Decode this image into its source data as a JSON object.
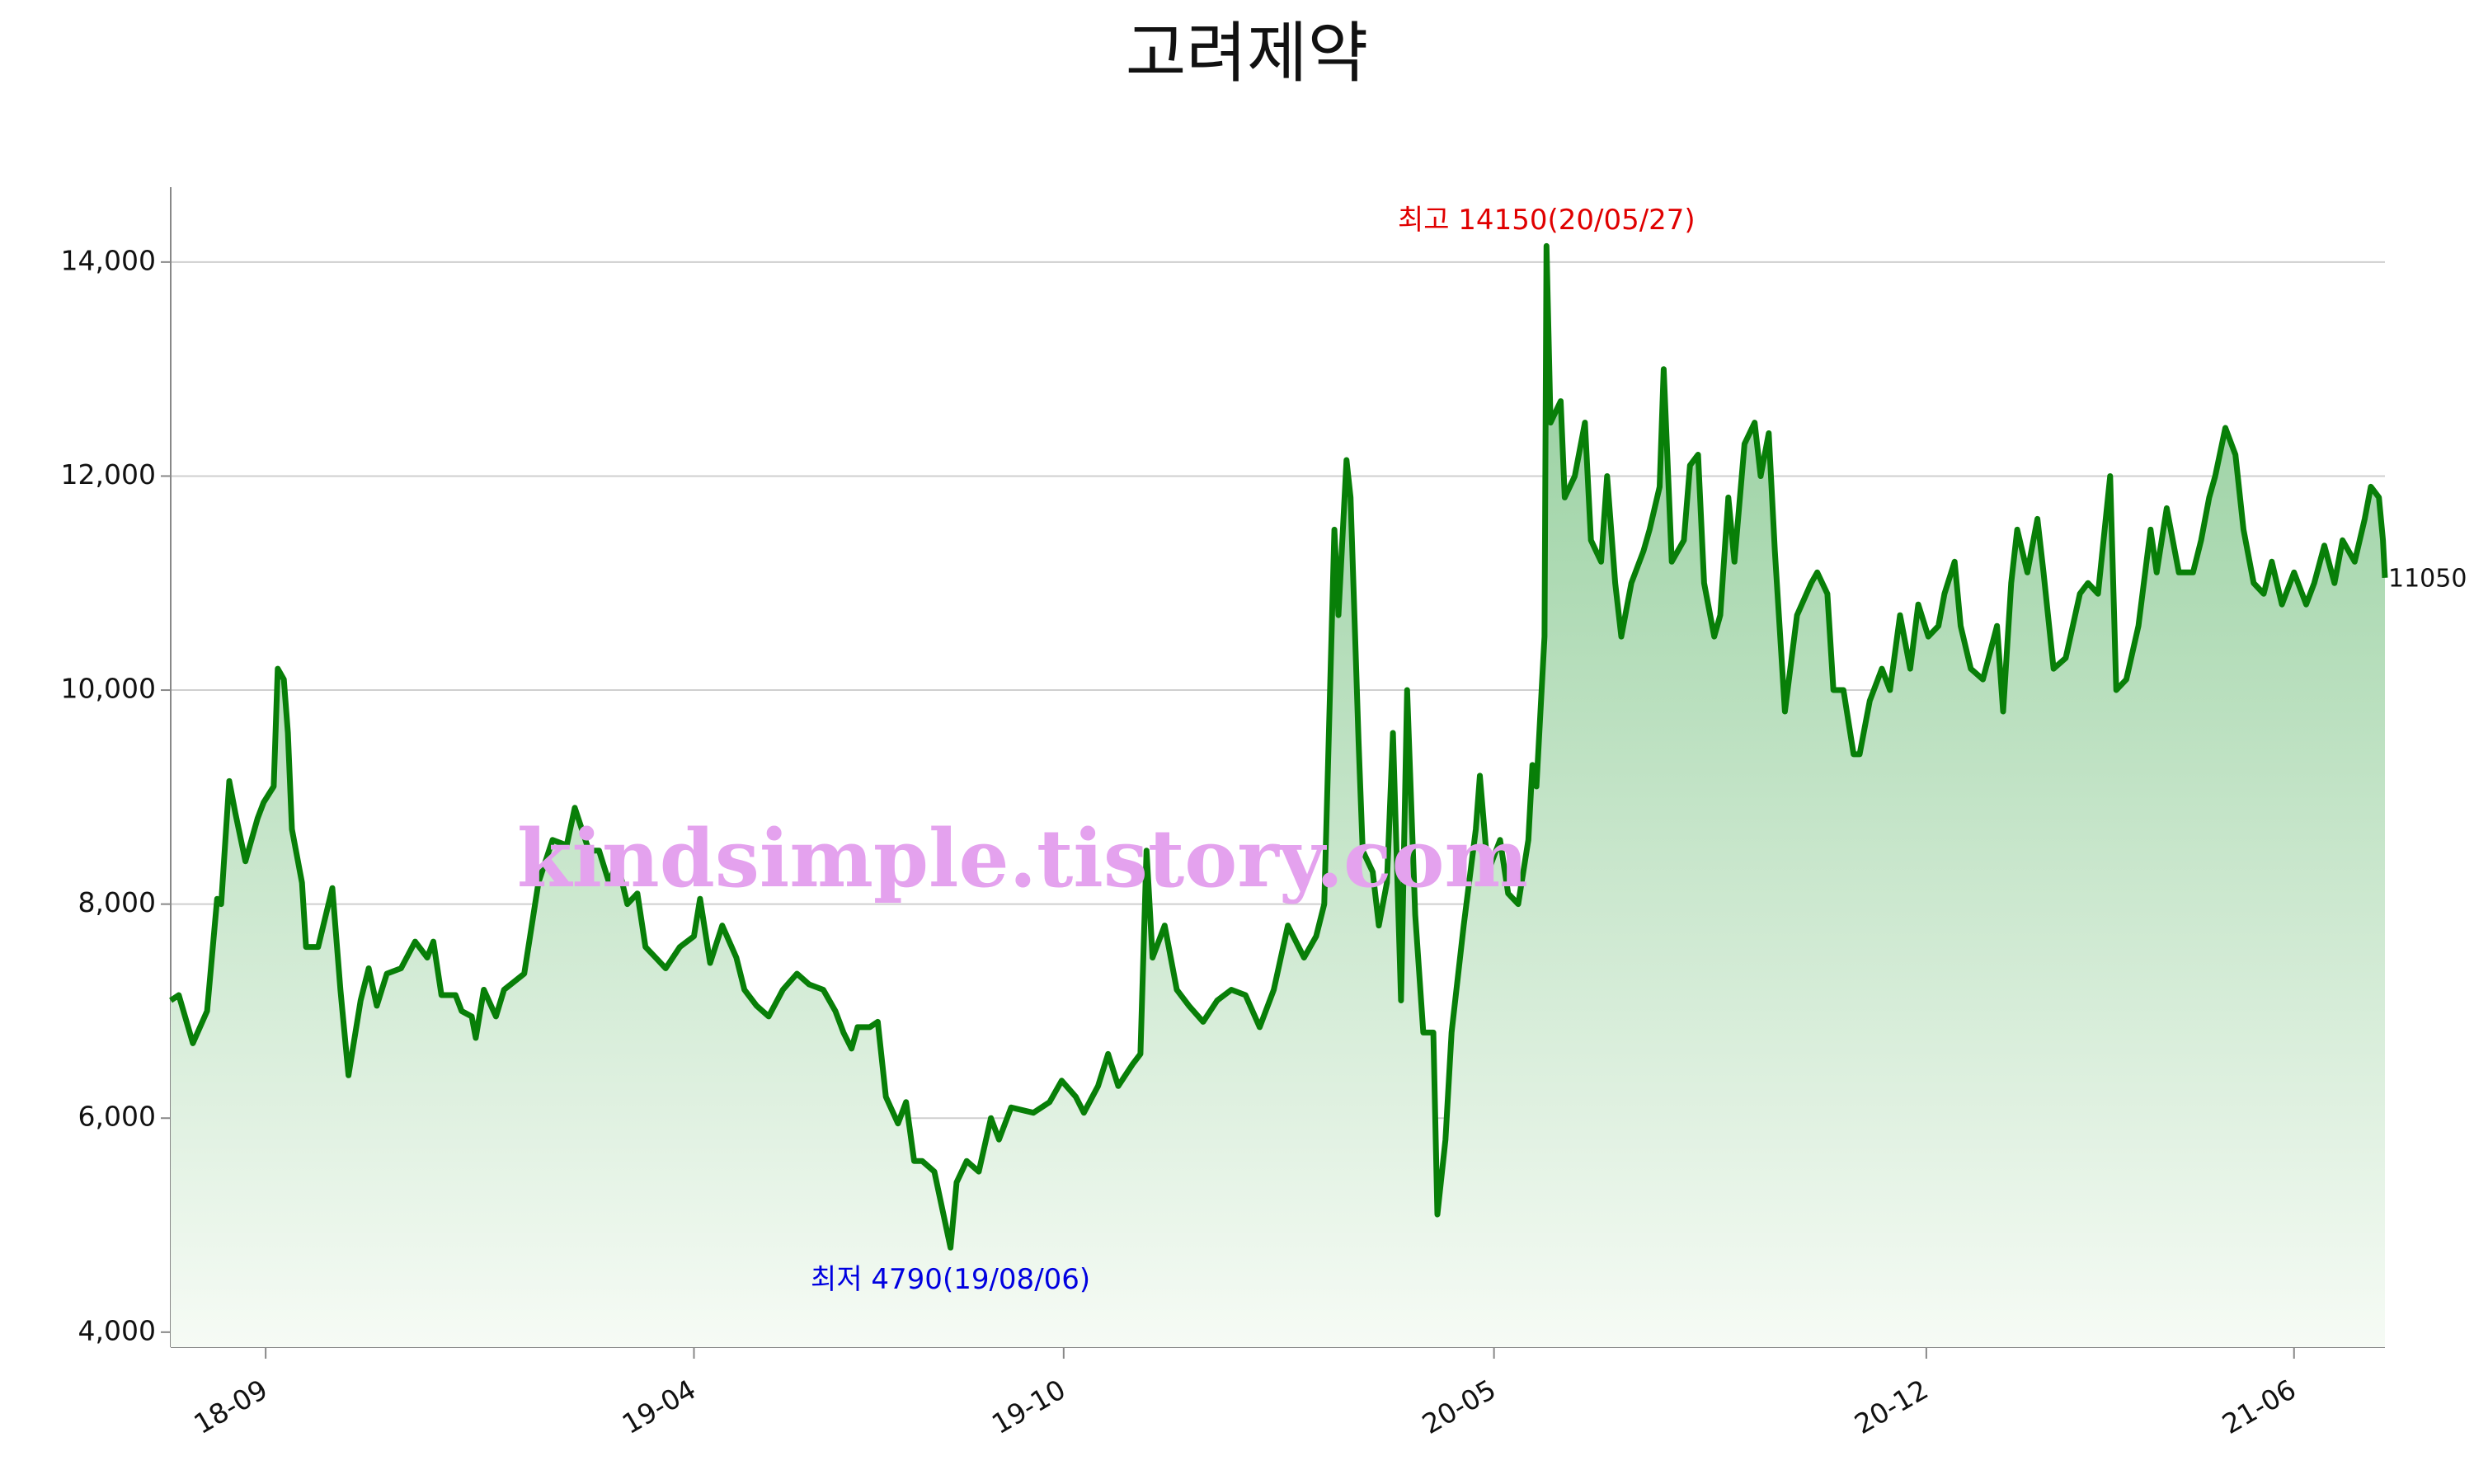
{
  "chart_data": {
    "type": "area",
    "title": "고려제약",
    "xlim": [
      "2018-07-16",
      "2021-07-16"
    ],
    "ylim": [
      3860,
      14700
    ],
    "yticks": [
      {
        "value": 4000,
        "label": "4,000"
      },
      {
        "value": 6000,
        "label": "6,000"
      },
      {
        "value": 8000,
        "label": "8,000"
      },
      {
        "value": 10000,
        "label": "10,000"
      },
      {
        "value": 12000,
        "label": "12,000"
      },
      {
        "value": 14000,
        "label": "14,000"
      }
    ],
    "xticks": [
      {
        "value": "2018-09",
        "label": "18-09"
      },
      {
        "value": "2019-04",
        "label": "19-04"
      },
      {
        "value": "2019-10",
        "label": "19-10"
      },
      {
        "value": "2020-05",
        "label": "20-05"
      },
      {
        "value": "2020-12",
        "label": "20-12"
      },
      {
        "value": "2021-06",
        "label": "21-06"
      }
    ],
    "grid": true,
    "max_label": {
      "text": "최고 14150(20/05/27)",
      "color": "#e00000"
    },
    "min_label": {
      "text": "최저 4790(19/08/06)",
      "color": "#0000e0"
    },
    "watermark": {
      "text": "kindsimple.tistory.com",
      "color": "#e4a2ee"
    },
    "x": [
      "2018-07-16",
      "2018-07-20",
      "2018-07-27",
      "2018-08-03",
      "2018-08-08",
      "2018-08-10",
      "2018-08-14",
      "2018-08-17",
      "2018-08-22",
      "2018-08-28",
      "2018-08-31",
      "2018-09-05",
      "2018-09-07",
      "2018-09-10",
      "2018-09-12",
      "2018-09-14",
      "2018-09-19",
      "2018-09-21",
      "2018-09-27",
      "2018-10-04",
      "2018-10-08",
      "2018-10-12",
      "2018-10-18",
      "2018-10-22",
      "2018-10-26",
      "2018-10-31",
      "2018-11-07",
      "2018-11-14",
      "2018-11-20",
      "2018-11-23",
      "2018-11-27",
      "2018-12-04",
      "2018-12-07",
      "2018-12-12",
      "2018-12-14",
      "2018-12-18",
      "2018-12-24",
      "2018-12-28",
      "2019-01-07",
      "2019-01-14",
      "2019-01-21",
      "2019-01-28",
      "2019-02-01",
      "2019-02-08",
      "2019-02-13",
      "2019-02-18",
      "2019-02-22",
      "2019-02-27",
      "2019-03-04",
      "2019-03-08",
      "2019-03-13",
      "2019-03-18",
      "2019-03-25",
      "2019-04-01",
      "2019-04-04",
      "2019-04-09",
      "2019-04-15",
      "2019-04-22",
      "2019-04-26",
      "2019-05-02",
      "2019-05-08",
      "2019-05-15",
      "2019-05-22",
      "2019-05-28",
      "2019-06-04",
      "2019-06-10",
      "2019-06-14",
      "2019-06-18",
      "2019-06-21",
      "2019-06-27",
      "2019-07-01",
      "2019-07-05",
      "2019-07-11",
      "2019-07-15",
      "2019-07-19",
      "2019-07-23",
      "2019-07-29",
      "2019-08-06",
      "2019-08-09",
      "2019-08-14",
      "2019-08-20",
      "2019-08-26",
      "2019-08-30",
      "2019-09-05",
      "2019-09-16",
      "2019-09-24",
      "2019-09-30",
      "2019-10-07",
      "2019-10-11",
      "2019-10-18",
      "2019-10-23",
      "2019-10-28",
      "2019-11-04",
      "2019-11-08",
      "2019-11-11",
      "2019-11-14",
      "2019-11-20",
      "2019-11-26",
      "2019-12-02",
      "2019-12-09",
      "2019-12-16",
      "2019-12-23",
      "2019-12-30",
      "2020-01-06",
      "2020-01-13",
      "2020-01-20",
      "2020-01-28",
      "2020-02-03",
      "2020-02-07",
      "2020-02-12",
      "2020-02-14",
      "2020-02-18",
      "2020-02-20",
      "2020-02-24",
      "2020-02-26",
      "2020-03-02",
      "2020-03-05",
      "2020-03-09",
      "2020-03-12",
      "2020-03-16",
      "2020-03-19",
      "2020-03-23",
      "2020-03-27",
      "2020-04-01",
      "2020-04-03",
      "2020-04-07",
      "2020-04-10",
      "2020-04-16",
      "2020-04-22",
      "2020-04-24",
      "2020-04-28",
      "2020-05-04",
      "2020-05-08",
      "2020-05-13",
      "2020-05-18",
      "2020-05-20",
      "2020-05-22",
      "2020-05-26",
      "2020-05-27",
      "2020-05-29",
      "2020-06-03",
      "2020-06-05",
      "2020-06-10",
      "2020-06-15",
      "2020-06-18",
      "2020-06-23",
      "2020-06-26",
      "2020-06-30",
      "2020-07-03",
      "2020-07-08",
      "2020-07-14",
      "2020-07-17",
      "2020-07-22",
      "2020-07-24",
      "2020-07-28",
      "2020-08-03",
      "2020-08-06",
      "2020-08-10",
      "2020-08-13",
      "2020-08-18",
      "2020-08-21",
      "2020-08-25",
      "2020-08-28",
      "2020-09-02",
      "2020-09-07",
      "2020-09-10",
      "2020-09-14",
      "2020-09-17",
      "2020-09-22",
      "2020-09-28",
      "2020-10-05",
      "2020-10-08",
      "2020-10-13",
      "2020-10-16",
      "2020-10-21",
      "2020-10-26",
      "2020-10-29",
      "2020-11-03",
      "2020-11-09",
      "2020-11-13",
      "2020-11-18",
      "2020-11-23",
      "2020-11-27",
      "2020-12-02",
      "2020-12-07",
      "2020-12-10",
      "2020-12-15",
      "2020-12-18",
      "2020-12-23",
      "2020-12-29",
      "2021-01-05",
      "2021-01-08",
      "2021-01-12",
      "2021-01-15",
      "2021-01-20",
      "2021-01-25",
      "2021-01-28",
      "2021-02-02",
      "2021-02-08",
      "2021-02-15",
      "2021-02-19",
      "2021-02-24",
      "2021-03-02",
      "2021-03-05",
      "2021-03-10",
      "2021-03-16",
      "2021-03-22",
      "2021-03-25",
      "2021-03-30",
      "2021-04-05",
      "2021-04-12",
      "2021-04-16",
      "2021-04-20",
      "2021-04-23",
      "2021-04-28",
      "2021-05-03",
      "2021-05-07",
      "2021-05-12",
      "2021-05-17",
      "2021-05-21",
      "2021-05-26",
      "2021-06-01",
      "2021-06-07",
      "2021-06-11",
      "2021-06-16",
      "2021-06-21",
      "2021-06-25",
      "2021-07-01",
      "2021-07-06",
      "2021-07-09",
      "2021-07-13",
      "2021-07-15",
      "2021-07-16"
    ],
    "series": [
      {
        "color": "#087f08",
        "values": [
          7100,
          7150,
          6700,
          7000,
          8050,
          8000,
          9150,
          8850,
          8400,
          8800,
          8950,
          9100,
          10200,
          10100,
          9600,
          8700,
          8200,
          7600,
          7600,
          8150,
          7200,
          6400,
          7100,
          7400,
          7050,
          7350,
          7400,
          7650,
          7500,
          7650,
          7150,
          7150,
          7000,
          6950,
          6750,
          7200,
          6950,
          7200,
          7350,
          8200,
          8600,
          8550,
          8900,
          8500,
          8500,
          8200,
          8400,
          8000,
          8100,
          7600,
          7500,
          7400,
          7600,
          7700,
          8050,
          7450,
          7800,
          7500,
          7200,
          7050,
          6950,
          7200,
          7350,
          7250,
          7200,
          7000,
          6800,
          6650,
          6850,
          6850,
          6900,
          6200,
          5950,
          6150,
          5600,
          5600,
          5500,
          4790,
          5400,
          5600,
          5500,
          6000,
          5800,
          6100,
          6050,
          6150,
          6350,
          6200,
          6050,
          6300,
          6600,
          6300,
          6500,
          6600,
          8500,
          7500,
          7800,
          7200,
          7050,
          6900,
          7100,
          7200,
          7150,
          6850,
          7200,
          7800,
          7500,
          7700,
          8000,
          11500,
          10700,
          12150,
          11800,
          9500,
          8500,
          8300,
          7800,
          8200,
          9600,
          7100,
          10000,
          7900,
          6800,
          6800,
          5100,
          5800,
          6800,
          7800,
          8700,
          9200,
          8300,
          8600,
          8100,
          8000,
          8600,
          9300,
          9100,
          10500,
          14150,
          12500,
          12700,
          11800,
          12000,
          12500,
          11400,
          11200,
          12000,
          11000,
          10500,
          11000,
          11300,
          11500,
          11900,
          13000,
          11200,
          11400,
          12100,
          12200,
          11000,
          10500,
          10700,
          11800,
          11200,
          12300,
          12500,
          12000,
          12400,
          11300,
          9800,
          10700,
          11000,
          11100,
          10900,
          10000,
          10000,
          9400,
          9400,
          9900,
          10200,
          10000,
          10700,
          10200,
          10800,
          10500,
          10600,
          10900,
          11200,
          10600,
          10200,
          10100,
          10600,
          9800,
          11000,
          11500,
          11100,
          11600,
          11100,
          10200,
          10300,
          10900,
          11000,
          10900,
          12000,
          10000,
          10100,
          10600,
          11500,
          11100,
          11700,
          11100,
          11100,
          11400,
          11800,
          12000,
          12450,
          12200,
          11500,
          11000,
          10900,
          11200,
          10800,
          11100,
          10800,
          11000,
          11350,
          11000,
          11400,
          11200,
          11600,
          11900,
          11800,
          11400,
          11050
        ]
      }
    ]
  }
}
